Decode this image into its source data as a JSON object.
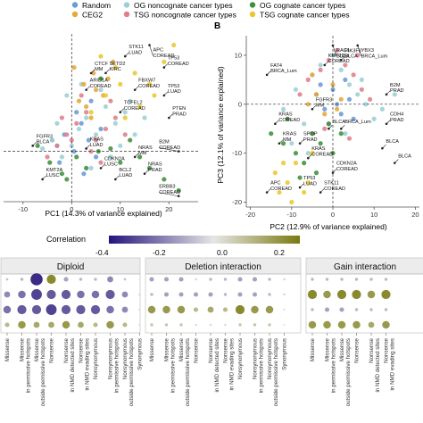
{
  "legend": {
    "items": [
      {
        "label": "Random",
        "color": "#6a9bd8"
      },
      {
        "label": "OG noncognate cancer types",
        "color": "#9ccfd6"
      },
      {
        "label": "OG cognate cancer types",
        "color": "#3f8f3f"
      },
      {
        "label": "CEG2",
        "color": "#e3a93a"
      },
      {
        "label": "TSG noncognate cancer types",
        "color": "#e07e8e"
      },
      {
        "label": "TSG cognate cancer types",
        "color": "#e8c830"
      }
    ]
  },
  "panel_b_letter": "B",
  "correlation_bar": {
    "title": "Correlation",
    "ticks": [
      "-0.4",
      "-0.2",
      "0.0",
      "0.2"
    ]
  },
  "chart_data": [
    {
      "type": "scatter",
      "xlabel": "PC1 (14.3% of variance explained)",
      "ylabel": "",
      "xlim": [
        -14,
        26
      ],
      "ylim": [
        -9,
        21
      ],
      "xticks": [
        -10,
        0,
        10,
        20
      ],
      "series": [
        {
          "name": "Random",
          "color": "#6a9bd8",
          "x": [
            -3,
            -1.5,
            0.5,
            2,
            3.5,
            5,
            1,
            -2.5,
            4,
            6,
            -4,
            2.5
          ],
          "y": [
            1,
            3,
            0,
            5,
            2,
            -1,
            7,
            -2,
            9,
            4,
            2,
            -4
          ]
        },
        {
          "name": "OG noncognate cancer types",
          "color": "#9ccfd6",
          "x": [
            -6,
            -4,
            -2,
            0,
            1.5,
            3,
            5,
            7,
            9,
            11,
            13,
            -1,
            4,
            8,
            10,
            2,
            6,
            -3,
            12,
            15
          ],
          "y": [
            0.5,
            2,
            -1,
            1,
            4,
            6,
            3,
            8,
            5,
            7,
            3,
            10,
            -3,
            -1,
            1,
            12,
            11,
            5,
            9,
            6
          ]
        },
        {
          "name": "OG cognate cancer types",
          "color": "#3f8f3f",
          "x": [
            -7,
            -4.5,
            -2,
            1,
            3,
            5.5,
            8,
            10,
            12,
            14,
            16,
            19,
            22,
            -1,
            6
          ],
          "y": [
            1,
            -2,
            -4,
            -1,
            -3,
            0,
            0.5,
            -2,
            2,
            -1,
            -3,
            -5,
            -7,
            -5,
            13
          ]
        },
        {
          "name": "CEG2",
          "color": "#e3a93a",
          "x": [
            0.5,
            2.5,
            4.5,
            6.5,
            3,
            5,
            7.5,
            1.5,
            8.5,
            4
          ],
          "y": [
            15,
            12,
            14,
            10,
            8,
            11,
            13,
            9,
            16,
            6
          ]
        },
        {
          "name": "TSG noncognate cancer types",
          "color": "#e07e8e",
          "x": [
            -5,
            -3,
            -1,
            1,
            3,
            5,
            7,
            9,
            11,
            2,
            4,
            6,
            -2,
            8,
            0
          ],
          "y": [
            -1,
            1,
            3,
            5,
            7,
            2,
            4,
            6,
            3,
            10,
            0,
            -2,
            6,
            9,
            2
          ]
        },
        {
          "name": "TSG cognate cancer types",
          "color": "#e8c830",
          "x": [
            4,
            7,
            10,
            13,
            16,
            19,
            21,
            11,
            14,
            17,
            9,
            6
          ],
          "y": [
            7,
            10,
            12,
            14,
            12,
            16,
            19,
            6,
            8,
            10,
            15,
            17
          ]
        }
      ],
      "annotations": [
        {
          "text": "APC COREAD",
          "x": 16,
          "y": 19
        },
        {
          "text": "STK11 LUAD",
          "x": 11,
          "y": 17
        },
        {
          "text": "CTCF MM",
          "x": 4,
          "y": 14
        },
        {
          "text": "SETD2 KIRC",
          "x": 7,
          "y": 14
        },
        {
          "text": "TP53 COREAD",
          "x": 19,
          "y": 15
        },
        {
          "text": "ARID1A COREAD",
          "x": 3,
          "y": 11
        },
        {
          "text": "FBXW7 COREAD",
          "x": 13,
          "y": 11
        },
        {
          "text": "TP53 LUAD",
          "x": 19,
          "y": 10
        },
        {
          "text": "TCFEL2 COREAD",
          "x": 10,
          "y": 7
        },
        {
          "text": "PTEN PRAD",
          "x": 20,
          "y": 6
        },
        {
          "text": "B2M COREAD",
          "x": 22,
          "y": 0
        },
        {
          "text": "FGFR3 BLCA",
          "x": -8,
          "y": 1
        },
        {
          "text": "KRAS LUAD",
          "x": 3,
          "y": 0.5
        },
        {
          "text": "NRAS MM",
          "x": 13,
          "y": -1
        },
        {
          "text": "NRAS PRAD",
          "x": 15,
          "y": -4
        },
        {
          "text": "BCL2 LUAD",
          "x": 9,
          "y": -5
        },
        {
          "text": "KMT2A LUSC",
          "x": -6,
          "y": -5
        },
        {
          "text": "CDKN2A LUSC",
          "x": 6,
          "y": -3
        },
        {
          "text": "ERBB3 COREAD",
          "x": 22,
          "y": -8
        }
      ]
    },
    {
      "type": "scatter",
      "xlabel": "PC2 (12.9% of variance explained)",
      "ylabel": "PC3 (12.1% of variance explained)",
      "xlim": [
        -21,
        21
      ],
      "ylim": [
        -21,
        14
      ],
      "xticks": [
        -20,
        -10,
        0,
        10,
        20
      ],
      "yticks": [
        -20,
        -10,
        0,
        10
      ],
      "series": [
        {
          "name": "Random",
          "color": "#6a9bd8",
          "x": [
            -4,
            -2,
            0,
            1,
            3,
            -1,
            2,
            4,
            -3,
            5
          ],
          "y": [
            2,
            -1,
            3,
            0,
            5,
            -4,
            -2,
            1,
            4,
            -3
          ]
        },
        {
          "name": "OG noncognate cancer types",
          "color": "#9ccfd6",
          "x": [
            -12,
            -9,
            -7,
            -5,
            -3,
            0,
            2,
            4,
            6,
            8,
            10,
            12,
            15,
            -10,
            -6,
            3,
            7
          ],
          "y": [
            -1,
            3,
            -4,
            6,
            8,
            10,
            7,
            4,
            2,
            0,
            -3,
            -1,
            2,
            -8,
            -10,
            -6,
            5
          ]
        },
        {
          "name": "OG cognate cancer types",
          "color": "#3f8f3f",
          "x": [
            -15,
            -12,
            -9,
            -7,
            -5,
            -3,
            -1,
            2,
            -11,
            -8,
            -4,
            0
          ],
          "y": [
            -6,
            -8,
            -10,
            -12,
            -6,
            -8,
            -4,
            -6,
            -3,
            -15,
            -14,
            -10
          ]
        },
        {
          "name": "CEG2",
          "color": "#e3a93a",
          "x": [
            -6,
            -4,
            -2,
            0,
            2,
            -5,
            1
          ],
          "y": [
            0,
            2,
            -2,
            4,
            1,
            6,
            -1
          ]
        },
        {
          "name": "TSG noncognate cancer types",
          "color": "#e07e8e",
          "x": [
            -8,
            -6,
            -3,
            -1,
            1,
            3,
            5,
            7,
            9,
            -2,
            4,
            6
          ],
          "y": [
            2,
            5,
            7,
            9,
            11,
            8,
            6,
            3,
            1,
            -5,
            -7,
            10
          ]
        },
        {
          "name": "TSG cognate cancer types",
          "color": "#e8c830",
          "x": [
            -14,
            -11,
            -9,
            -7,
            -5,
            -13,
            -10,
            -6,
            -12
          ],
          "y": [
            -14,
            -16,
            -12,
            -18,
            -10,
            -18,
            -20,
            -16,
            -12
          ]
        }
      ],
      "annotations": [
        {
          "text": "RAC1 BLCA",
          "x": 0,
          "y": 12
        },
        {
          "text": "YBX3 BRCA_Lum",
          "x": 6,
          "y": 12
        },
        {
          "text": "KMT2D COREAD",
          "x": -2,
          "y": 8
        },
        {
          "text": "PIK3F8 BLCA",
          "x": 2,
          "y": 9
        },
        {
          "text": "FAT4 BRCA_Lum",
          "x": -16,
          "y": 6
        },
        {
          "text": "B2M PRAD",
          "x": 13,
          "y": 2
        },
        {
          "text": "FGFR3 MM",
          "x": -5,
          "y": -1
        },
        {
          "text": "KRAS COREAD",
          "x": -14,
          "y": -4
        },
        {
          "text": "SPOP PRAD",
          "x": -8,
          "y": -8
        },
        {
          "text": "KRAS MM",
          "x": -13,
          "y": -8
        },
        {
          "text": "KRAS COREAD",
          "x": -6,
          "y": -11
        },
        {
          "text": "BLCA",
          "x": -1,
          "y": -5
        },
        {
          "text": "BRCA_Lum",
          "x": 2,
          "y": -5
        },
        {
          "text": "CDH4 PRAD",
          "x": 13,
          "y": -4
        },
        {
          "text": "CDKN2A COREAD",
          "x": 0,
          "y": -14
        },
        {
          "text": "APC COREAD",
          "x": -16,
          "y": -18
        },
        {
          "text": "TP53 LUAD",
          "x": -8,
          "y": -17
        },
        {
          "text": "STK11 COREAD",
          "x": -3,
          "y": -18
        },
        {
          "text": "BLCA",
          "x": 12,
          "y": -9
        },
        {
          "text": "BLCA",
          "x": 15,
          "y": -12
        }
      ]
    },
    {
      "type": "heatmap",
      "panels": [
        {
          "title": "Diploid",
          "columns": [
            "Missense",
            "Missense in permissive hotspots",
            "Missense outside permissive hotspots",
            "Nonsense",
            "Nonsense in NMD detected sites",
            "Nonsense in NMD evading sites",
            "Nonsynonymous",
            "Nonsynonymous in permissive hotspots",
            "Nonsynonymous outside permissive hotspots",
            "Synonymous"
          ]
        },
        {
          "title": "Deletion interaction",
          "columns": [
            "Missense",
            "Missense in permissive hotspots",
            "Missense outside permissive hotspots",
            "Nonsense",
            "Nonsense in NMD detected sites",
            "Nonsense in NMD evading sites",
            "Nonsynonymous",
            "Nonsynonymous in permissive hotspots",
            "Nonsynonymous outside permissive hotspots",
            "Synonymous"
          ]
        },
        {
          "title": "Gain interaction",
          "columns": [
            "Missense",
            "Missense in permissive hotspots",
            "Missense outside permissive hotspots",
            "Nonsense",
            "Nonsense in NMD detected sites",
            "Nonsense in NMD evading sites"
          ]
        }
      ],
      "values": [
        [
          [
            -0.08,
            -0.1,
            -0.4,
            0.3,
            -0.15,
            -0.1,
            -0.1,
            -0.2,
            -0.08,
            0.02
          ],
          [
            -0.2,
            -0.25,
            -0.35,
            -0.3,
            -0.3,
            -0.25,
            -0.25,
            -0.3,
            -0.2,
            0.05
          ],
          [
            -0.25,
            -0.3,
            -0.3,
            -0.35,
            -0.3,
            -0.3,
            -0.3,
            -0.25,
            -0.2,
            0.04
          ],
          [
            0.15,
            0.25,
            0.2,
            0.2,
            0.25,
            0.2,
            0.15,
            0.25,
            0.15,
            0.03
          ]
        ],
        [
          [
            -0.15,
            -0.15,
            -0.15,
            -0.05,
            -0.1,
            -0.1,
            -0.15,
            -0.15,
            -0.1,
            -0.05
          ],
          [
            -0.1,
            -0.15,
            -0.15,
            -0.15,
            -0.15,
            -0.1,
            -0.15,
            -0.15,
            -0.1,
            -0.05
          ],
          [
            0.25,
            0.25,
            0.25,
            0.15,
            0.2,
            0.15,
            0.3,
            0.25,
            0.25,
            0.03
          ],
          [
            0.1,
            0.1,
            0.1,
            0.05,
            0.05,
            0.05,
            0.1,
            0.1,
            0.1,
            0.0
          ]
        ],
        [
          [
            -0.1,
            -0.1,
            -0.1,
            -0.1,
            -0.1,
            -0.1
          ],
          [
            0.3,
            0.25,
            0.3,
            0.3,
            0.25,
            0.3
          ],
          [
            -0.1,
            -0.15,
            -0.15,
            -0.1,
            -0.1,
            -0.1
          ],
          [
            0.25,
            0.25,
            0.25,
            0.25,
            0.2,
            0.25
          ]
        ]
      ],
      "colorbar": {
        "min": -0.45,
        "max": 0.35,
        "low_color": "#26137a",
        "mid_color": "#e6e6e6",
        "high_color": "#7a7a10"
      }
    }
  ]
}
